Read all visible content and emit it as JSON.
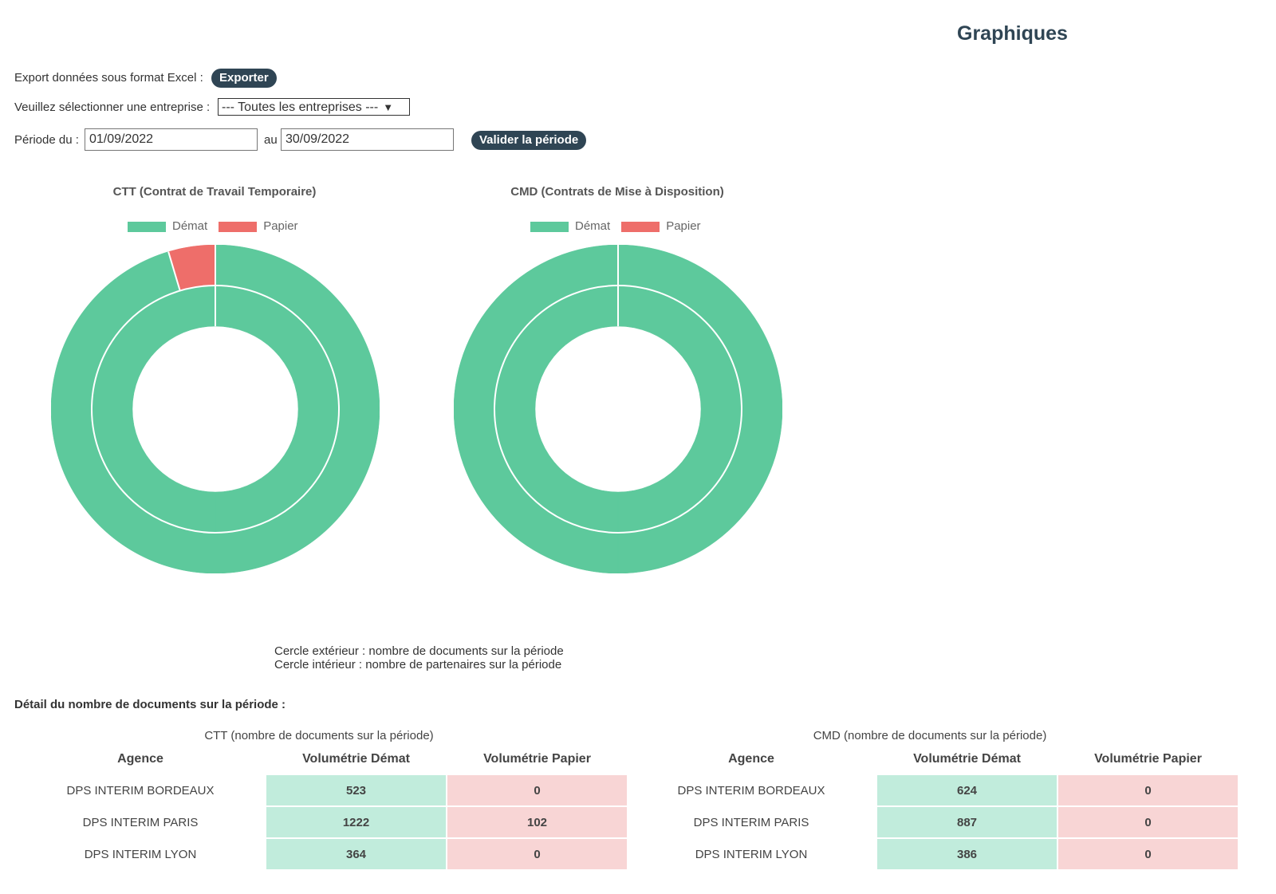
{
  "page": {
    "title": "Graphiques"
  },
  "export": {
    "label": "Export données sous format Excel :",
    "button": "Exporter"
  },
  "company": {
    "label": "Veuillez sélectionner une entreprise :",
    "selected": "--- Toutes les entreprises ---"
  },
  "period": {
    "label": "Période du :",
    "from": "01/09/2022",
    "to_label": "au",
    "to": "30/09/2022",
    "button": "Valider la période"
  },
  "colors": {
    "demat": "#5dc99c",
    "papier": "#ee6e6a",
    "button": "#2f4554"
  },
  "legend": {
    "demat": "Démat",
    "papier": "Papier"
  },
  "chart_data": [
    {
      "type": "pie",
      "title": "CTT (Contrat de Travail Temporaire)",
      "outer": {
        "labels": [
          "Démat",
          "Papier"
        ],
        "values": [
          2109,
          102
        ]
      },
      "inner": {
        "labels": [
          "Démat",
          "Papier"
        ],
        "values": [
          1,
          0
        ]
      }
    },
    {
      "type": "pie",
      "title": "CMD (Contrats de Mise à Disposition)",
      "outer": {
        "labels": [
          "Démat",
          "Papier"
        ],
        "values": [
          1897,
          0
        ]
      },
      "inner": {
        "labels": [
          "Démat",
          "Papier"
        ],
        "values": [
          1,
          0
        ]
      }
    }
  ],
  "notes": {
    "outer": "Cercle extérieur : nombre de documents sur la période",
    "inner": "Cercle intérieur : nombre de partenaires sur la période"
  },
  "detail_title": "Détail du nombre de documents sur la période :",
  "tables": {
    "headers": {
      "agency": "Agence",
      "demat": "Volumétrie Démat",
      "papier": "Volumétrie Papier"
    },
    "ctt": {
      "caption": "CTT (nombre de documents sur la période)",
      "rows": [
        {
          "agency": "DPS INTERIM BORDEAUX",
          "demat": "523",
          "papier": "0"
        },
        {
          "agency": "DPS INTERIM PARIS",
          "demat": "1222",
          "papier": "102"
        },
        {
          "agency": "DPS INTERIM LYON",
          "demat": "364",
          "papier": "0"
        }
      ]
    },
    "cmd": {
      "caption": "CMD (nombre de documents sur la période)",
      "rows": [
        {
          "agency": "DPS INTERIM BORDEAUX",
          "demat": "624",
          "papier": "0"
        },
        {
          "agency": "DPS INTERIM PARIS",
          "demat": "887",
          "papier": "0"
        },
        {
          "agency": "DPS INTERIM LYON",
          "demat": "386",
          "papier": "0"
        }
      ]
    }
  }
}
